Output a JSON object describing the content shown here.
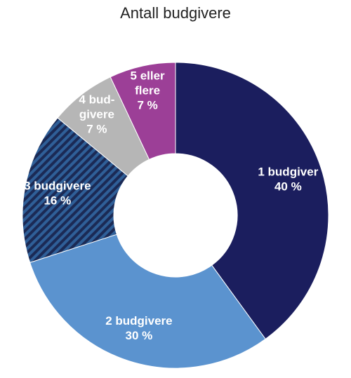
{
  "chart_data": {
    "type": "pie",
    "title": "Antall budgivere",
    "categories": [
      "1 budgiver",
      "2 budgivere",
      "3 budgivere",
      "4 bud-givere",
      "5 eller flere"
    ],
    "label_lines": [
      [
        "1 budgiver"
      ],
      [
        "2 budgivere"
      ],
      [
        "3 budgivere"
      ],
      [
        "4 bud-",
        "givere"
      ],
      [
        "5 eller",
        "flere"
      ]
    ],
    "values": [
      40,
      30,
      16,
      7,
      7
    ],
    "value_labels": [
      "40 %",
      "30 %",
      "16 %",
      "7 %",
      "7 %"
    ],
    "colors": [
      "#1b1e5e",
      "#5b93cf",
      "#2f5f98",
      "#b6b6b6",
      "#9c3f97"
    ],
    "label_colors": [
      "#ffffff",
      "#ffffff",
      "#ffffff",
      "#ffffff",
      "#ffffff"
    ],
    "hatched": [
      false,
      false,
      true,
      false,
      false
    ],
    "donut": true,
    "start_angle_deg": 0,
    "direction": "clockwise"
  }
}
